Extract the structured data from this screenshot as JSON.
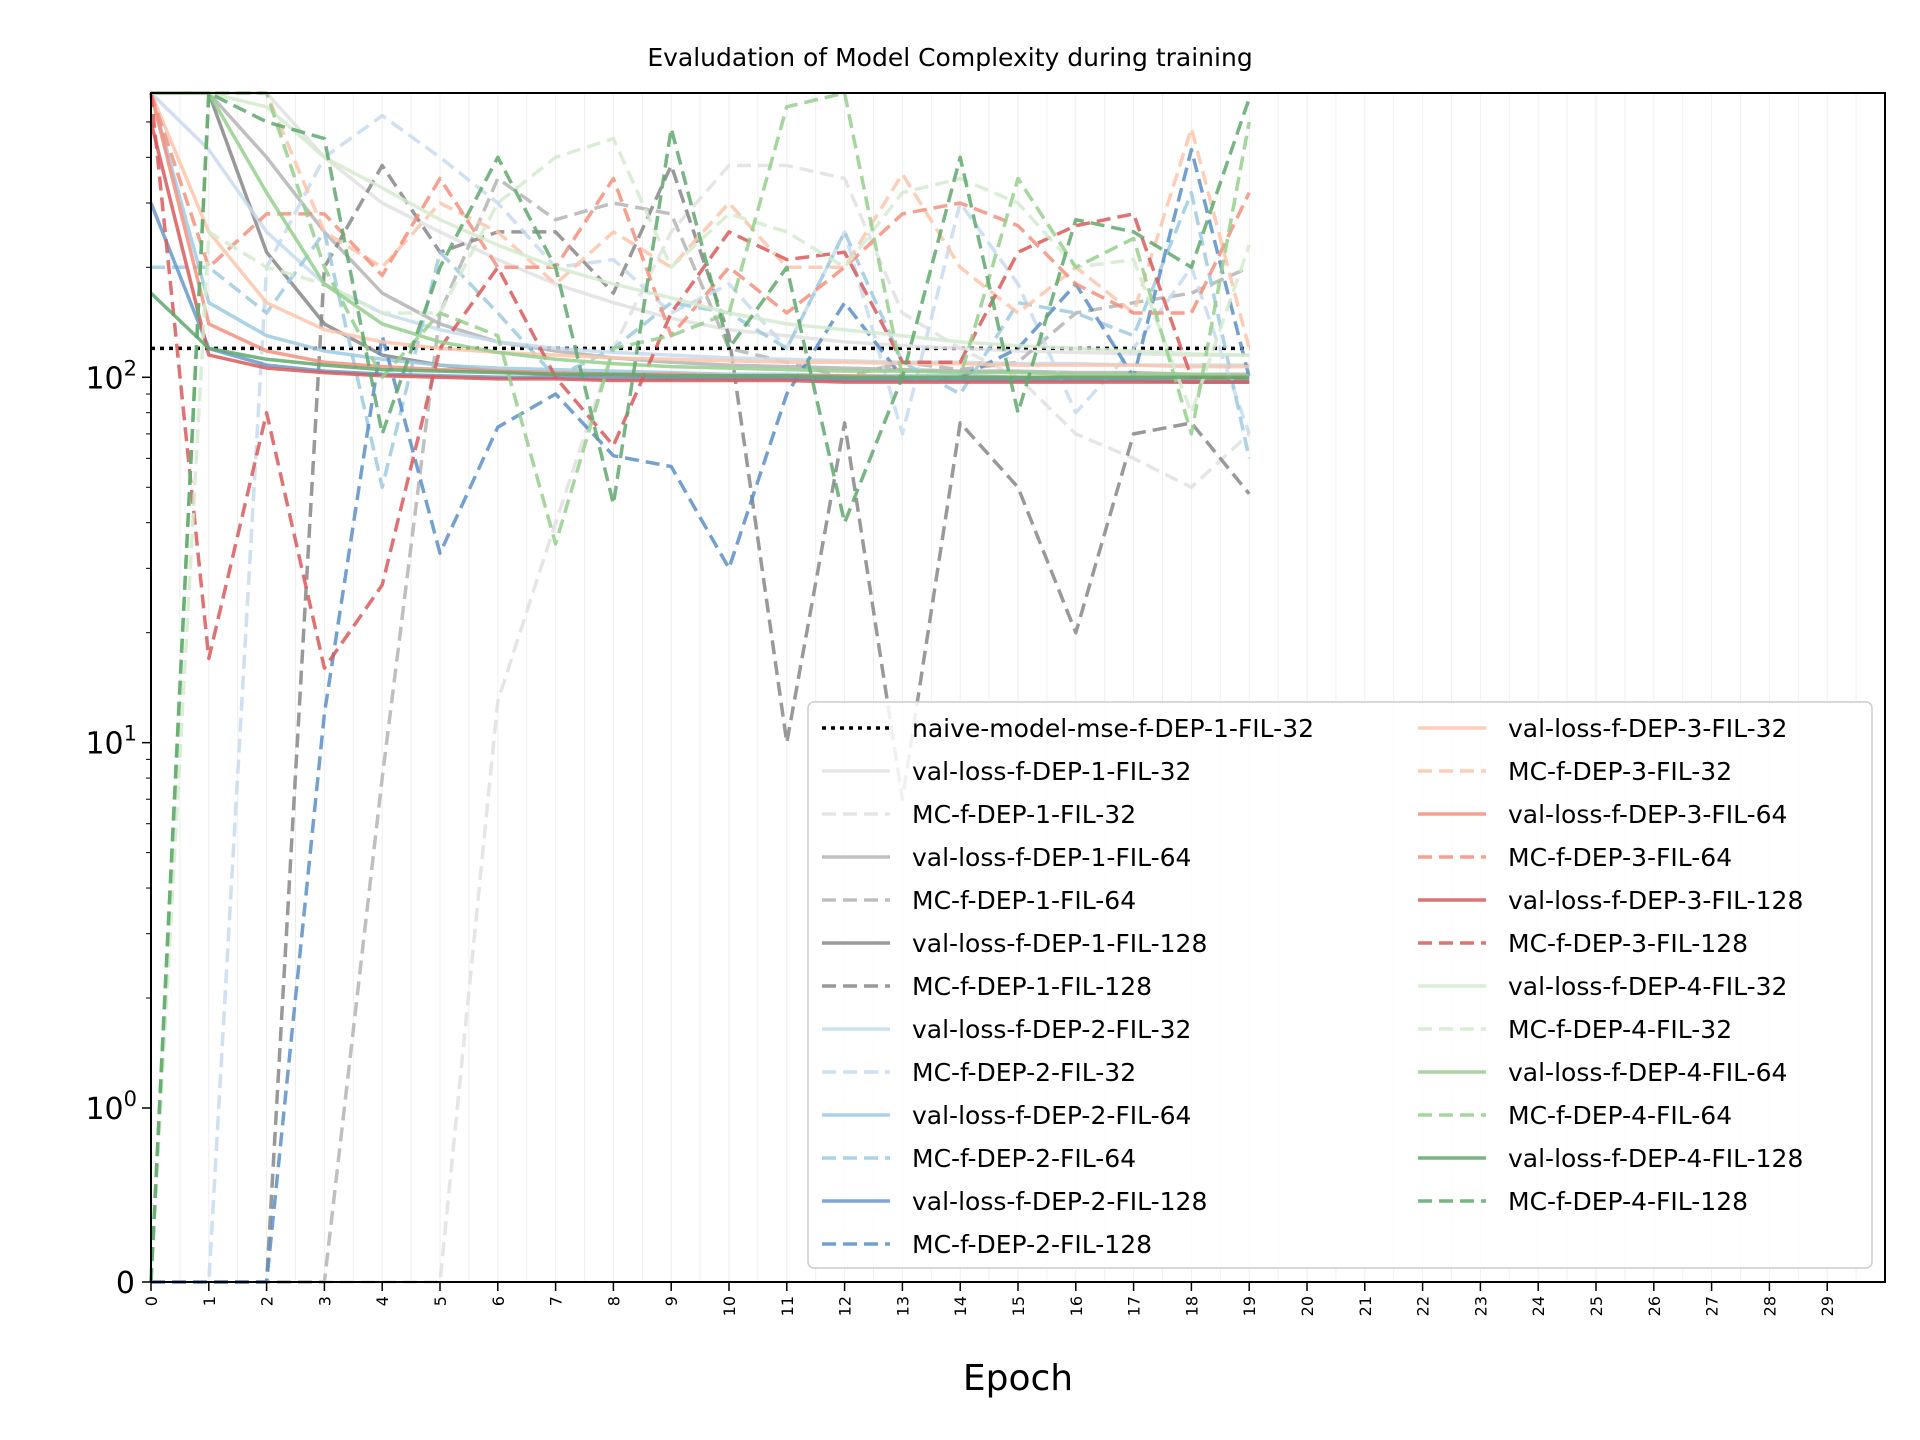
{
  "chart_data": {
    "type": "line",
    "title": "Evaludation of Model Complexity during training",
    "xlabel": "Epoch",
    "ylabel": "",
    "xlim": [
      0,
      30
    ],
    "x_ticks": [
      "0",
      "1",
      "2",
      "3",
      "4",
      "5",
      "6",
      "7",
      "8",
      "9",
      "10",
      "11",
      "12",
      "13",
      "14",
      "15",
      "16",
      "17",
      "18",
      "19",
      "20",
      "21",
      "22",
      "23",
      "24",
      "25",
      "26",
      "27",
      "28",
      "29"
    ],
    "y_scale": "symlog",
    "ylim": [
      0,
      600
    ],
    "y_ticks": [
      {
        "value": 0,
        "base": "0",
        "exp": ""
      },
      {
        "value": 1,
        "base": "10",
        "exp": "0"
      },
      {
        "value": 10,
        "base": "10",
        "exp": "1"
      },
      {
        "value": 100,
        "base": "10",
        "exp": "2"
      }
    ],
    "grid": "vertical minor lines",
    "legend": {
      "position": "lower-right",
      "columns": 2
    },
    "series": [
      {
        "name": "naive-model-mse-f-DEP-1-FIL-32",
        "color": "#000000",
        "style": "dotted",
        "values": [
          120,
          120,
          120,
          120,
          120,
          120,
          120,
          120,
          120,
          120,
          120,
          120,
          120,
          120,
          120,
          120,
          120,
          120,
          120,
          120
        ]
      },
      {
        "name": "val-loss-f-DEP-1-FIL-32",
        "color": "#e0e0e0",
        "style": "solid",
        "values": [
          600,
          600,
          600,
          400,
          300,
          250,
          210,
          180,
          160,
          145,
          135,
          130,
          125,
          122,
          120,
          118,
          117,
          116,
          115,
          115
        ]
      },
      {
        "name": "MC-f-DEP-1-FIL-32",
        "color": "#e0e0e0",
        "style": "dashed",
        "values": [
          0,
          0,
          0,
          0,
          0,
          0,
          13,
          40,
          120,
          250,
          380,
          380,
          350,
          150,
          120,
          100,
          70,
          60,
          50,
          70
        ]
      },
      {
        "name": "val-loss-f-DEP-1-FIL-64",
        "color": "#b4b4b4",
        "style": "solid",
        "values": [
          600,
          600,
          400,
          250,
          170,
          140,
          125,
          118,
          113,
          110,
          108,
          107,
          106,
          105,
          104,
          104,
          103,
          103,
          102,
          102
        ]
      },
      {
        "name": "MC-f-DEP-1-FIL-64",
        "color": "#b4b4b4",
        "style": "dashed",
        "values": [
          0,
          0,
          0,
          0,
          8,
          150,
          350,
          270,
          300,
          280,
          120,
          110,
          100,
          110,
          105,
          110,
          150,
          160,
          170,
          200
        ]
      },
      {
        "name": "val-loss-f-DEP-1-FIL-128",
        "color": "#878787",
        "style": "solid",
        "values": [
          600,
          600,
          220,
          140,
          115,
          108,
          104,
          102,
          101,
          100,
          100,
          100,
          99,
          99,
          99,
          99,
          99,
          99,
          99,
          99
        ]
      },
      {
        "name": "MC-f-DEP-1-FIL-128",
        "color": "#878787",
        "style": "dashed",
        "values": [
          0,
          0,
          0,
          200,
          380,
          220,
          250,
          250,
          170,
          380,
          130,
          10,
          75,
          7,
          75,
          50,
          20,
          70,
          75,
          48
        ]
      },
      {
        "name": "val-loss-f-DEP-2-FIL-32",
        "color": "#c6dbef",
        "style": "solid",
        "values": [
          600,
          420,
          250,
          180,
          150,
          135,
          125,
          120,
          117,
          115,
          113,
          112,
          111,
          110,
          110,
          109,
          109,
          108,
          108,
          108
        ]
      },
      {
        "name": "MC-f-DEP-2-FIL-32",
        "color": "#c6dbef",
        "style": "dashed",
        "values": [
          0,
          0,
          200,
          400,
          520,
          400,
          300,
          200,
          210,
          150,
          180,
          120,
          250,
          70,
          300,
          180,
          80,
          120,
          200,
          70
        ]
      },
      {
        "name": "val-loss-f-DEP-2-FIL-64",
        "color": "#9ecae1",
        "style": "solid",
        "values": [
          600,
          160,
          130,
          118,
          112,
          108,
          106,
          105,
          104,
          103,
          102,
          102,
          101,
          101,
          101,
          100,
          100,
          100,
          100,
          100
        ]
      },
      {
        "name": "MC-f-DEP-2-FIL-64",
        "color": "#9ecae1",
        "style": "dashed",
        "values": [
          200,
          200,
          150,
          250,
          50,
          220,
          150,
          100,
          120,
          160,
          150,
          120,
          250,
          110,
          90,
          160,
          150,
          130,
          320,
          60
        ]
      },
      {
        "name": "val-loss-f-DEP-2-FIL-128",
        "color": "#6699cc",
        "style": "solid",
        "values": [
          300,
          120,
          108,
          104,
          102,
          101,
          100,
          100,
          99,
          99,
          99,
          99,
          98,
          98,
          98,
          98,
          98,
          98,
          97,
          97
        ]
      },
      {
        "name": "MC-f-DEP-2-FIL-128",
        "color": "#5b8fc5",
        "style": "dashed",
        "values": [
          0,
          0,
          0,
          12,
          130,
          33,
          73,
          90,
          61,
          57,
          30,
          90,
          160,
          100,
          100,
          120,
          180,
          100,
          420,
          100
        ]
      },
      {
        "name": "val-loss-f-DEP-3-FIL-32",
        "color": "#fcc5ac",
        "style": "solid",
        "values": [
          600,
          250,
          160,
          135,
          125,
          120,
          117,
          115,
          113,
          112,
          111,
          110,
          110,
          109,
          109,
          108,
          108,
          108,
          107,
          107
        ]
      },
      {
        "name": "MC-f-DEP-3-FIL-32",
        "color": "#fcc5ac",
        "style": "dashed",
        "values": [
          600,
          600,
          600,
          250,
          200,
          300,
          250,
          180,
          250,
          200,
          300,
          200,
          200,
          360,
          200,
          150,
          200,
          150,
          480,
          120
        ]
      },
      {
        "name": "val-loss-f-DEP-3-FIL-64",
        "color": "#f4917c",
        "style": "solid",
        "values": [
          600,
          140,
          118,
          110,
          107,
          105,
          104,
          103,
          102,
          102,
          101,
          101,
          101,
          100,
          100,
          100,
          100,
          100,
          100,
          100
        ]
      },
      {
        "name": "MC-f-DEP-3-FIL-64",
        "color": "#f4917c",
        "style": "dashed",
        "values": [
          600,
          200,
          280,
          280,
          190,
          350,
          200,
          200,
          350,
          130,
          200,
          150,
          200,
          280,
          300,
          260,
          180,
          150,
          150,
          320
        ]
      },
      {
        "name": "val-loss-f-DEP-3-FIL-128",
        "color": "#d95b5b",
        "style": "solid",
        "values": [
          500,
          115,
          106,
          103,
          101,
          100,
          99,
          99,
          98,
          98,
          98,
          98,
          97,
          97,
          97,
          97,
          97,
          97,
          97,
          97
        ]
      },
      {
        "name": "MC-f-DEP-3-FIL-128",
        "color": "#d95b5b",
        "style": "dashed",
        "values": [
          600,
          17,
          80,
          16,
          27,
          120,
          200,
          100,
          65,
          150,
          250,
          210,
          220,
          110,
          110,
          220,
          260,
          280,
          100,
          100
        ]
      },
      {
        "name": "val-loss-f-DEP-4-FIL-32",
        "color": "#d4ebcf",
        "style": "solid",
        "values": [
          600,
          600,
          550,
          400,
          330,
          270,
          230,
          200,
          180,
          165,
          150,
          140,
          135,
          130,
          125,
          122,
          120,
          118,
          116,
          115
        ]
      },
      {
        "name": "MC-f-DEP-4-FIL-32",
        "color": "#d4ebcf",
        "style": "dashed",
        "values": [
          0,
          250,
          200,
          180,
          150,
          150,
          300,
          400,
          450,
          200,
          280,
          250,
          200,
          320,
          350,
          300,
          200,
          210,
          80,
          230
        ]
      },
      {
        "name": "val-loss-f-DEP-4-FIL-64",
        "color": "#95cf8c",
        "style": "solid",
        "values": [
          600,
          600,
          320,
          180,
          140,
          125,
          117,
          112,
          109,
          107,
          106,
          105,
          104,
          104,
          103,
          103,
          102,
          102,
          102,
          101
        ]
      },
      {
        "name": "MC-f-DEP-4-FIL-64",
        "color": "#95cf8c",
        "style": "dashed",
        "values": [
          0,
          600,
          600,
          200,
          100,
          150,
          130,
          35,
          120,
          130,
          150,
          550,
          600,
          100,
          100,
          350,
          200,
          240,
          70,
          500
        ]
      },
      {
        "name": "val-loss-f-DEP-4-FIL-128",
        "color": "#5fa86c",
        "style": "solid",
        "values": [
          170,
          120,
          112,
          108,
          105,
          104,
          103,
          102,
          102,
          101,
          101,
          101,
          100,
          100,
          100,
          100,
          100,
          100,
          100,
          100
        ]
      },
      {
        "name": "MC-f-DEP-4-FIL-128",
        "color": "#5fa86c",
        "style": "dashed",
        "values": [
          0,
          600,
          500,
          450,
          70,
          200,
          400,
          200,
          45,
          480,
          120,
          200,
          40,
          100,
          400,
          80,
          270,
          250,
          200,
          580
        ]
      }
    ]
  }
}
